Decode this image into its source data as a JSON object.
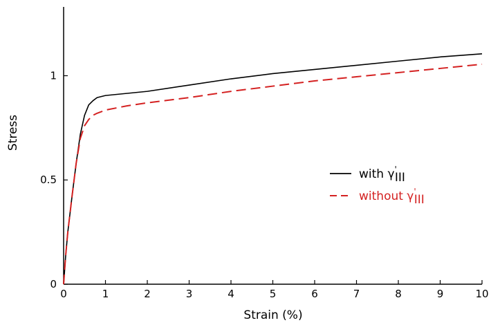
{
  "chart_data": {
    "type": "line",
    "xlabel": "Strain (%)",
    "ylabel": "Stress",
    "xlim": [
      0,
      10
    ],
    "ylim": [
      0,
      1.33
    ],
    "x_ticks": [
      0,
      1,
      2,
      3,
      4,
      5,
      6,
      7,
      8,
      9,
      10
    ],
    "x_tick_labels": [
      "0",
      "1",
      "2",
      "3",
      "4",
      "5",
      "6",
      "7",
      "8",
      "9",
      "10"
    ],
    "y_ticks": [
      0,
      0.5,
      1
    ],
    "y_tick_labels": [
      "0",
      "0.5",
      "1"
    ],
    "grid": false,
    "legend_position": "right",
    "series": [
      {
        "name": "with γ'III",
        "legend_main": "with γ",
        "legend_prime": "'",
        "legend_sub": "III",
        "color": "#000000",
        "dash": "solid",
        "x": [
          0,
          0.05,
          0.1,
          0.2,
          0.3,
          0.4,
          0.5,
          0.6,
          0.7,
          0.8,
          1.0,
          1.5,
          2,
          3,
          4,
          5,
          6,
          7,
          8,
          9,
          10
        ],
        "y": [
          0,
          0.14,
          0.25,
          0.42,
          0.58,
          0.72,
          0.81,
          0.86,
          0.88,
          0.895,
          0.905,
          0.915,
          0.925,
          0.955,
          0.985,
          1.01,
          1.03,
          1.05,
          1.07,
          1.09,
          1.105
        ]
      },
      {
        "name": "without γ'III",
        "legend_main": "without γ",
        "legend_prime": "'",
        "legend_sub": "III",
        "color": "#d42020",
        "dash": "dashed",
        "x": [
          0,
          0.05,
          0.1,
          0.2,
          0.3,
          0.4,
          0.5,
          0.6,
          0.7,
          0.8,
          1.0,
          1.5,
          2,
          3,
          4,
          5,
          6,
          7,
          8,
          9,
          10
        ],
        "y": [
          0,
          0.14,
          0.25,
          0.42,
          0.58,
          0.7,
          0.76,
          0.79,
          0.81,
          0.82,
          0.835,
          0.855,
          0.87,
          0.895,
          0.925,
          0.95,
          0.975,
          0.995,
          1.015,
          1.035,
          1.055
        ]
      }
    ]
  }
}
